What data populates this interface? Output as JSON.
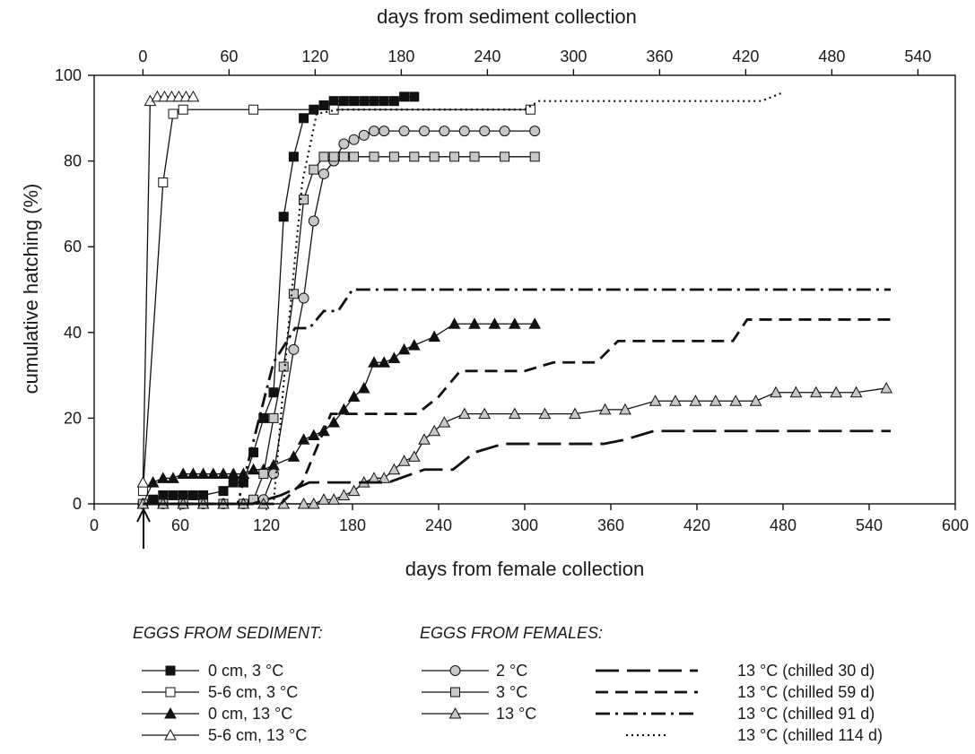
{
  "chart_data": {
    "type": "line",
    "title": "",
    "xlabel": "days from female collection",
    "ylabel": "cumulative hatching (%)",
    "x2label": "days from sediment collection",
    "xlim": [
      0,
      600
    ],
    "ylim": [
      0,
      100
    ],
    "x2lim": [
      0,
      570
    ],
    "x2_offset_days": 34,
    "xticks": [
      0,
      60,
      120,
      180,
      240,
      300,
      360,
      420,
      480,
      540,
      600
    ],
    "yticks": [
      0,
      20,
      40,
      60,
      80,
      100
    ],
    "x2ticks": [
      0,
      60,
      120,
      180,
      240,
      300,
      360,
      420,
      480,
      540
    ],
    "grid": false,
    "legend_group_sediment_title": "EGGS FROM SEDIMENT:",
    "legend_group_females_title": "EGGS FROM FEMALES:",
    "series": [
      {
        "name": "0 cm,  3 °C",
        "group": "sediment",
        "axis": "top",
        "style": "solid",
        "marker": "square",
        "fill": "#111111",
        "x": [
          0,
          7,
          14,
          21,
          28,
          35,
          42,
          56,
          63,
          70,
          77,
          84,
          91,
          98,
          105,
          112,
          119,
          126,
          133,
          140,
          147,
          154,
          161,
          168,
          175,
          182,
          189
        ],
        "y": [
          0,
          1,
          2,
          2,
          2,
          2,
          2,
          3,
          5,
          5,
          12,
          20,
          26,
          67,
          81,
          90,
          92,
          93,
          94,
          94,
          94,
          94,
          94,
          94,
          94,
          95,
          95
        ]
      },
      {
        "name": "5-6 cm, 3 °C",
        "group": "sediment",
        "axis": "top",
        "style": "solid",
        "marker": "square",
        "fill": "#ffffff",
        "x": [
          0,
          14,
          21,
          28,
          77,
          133,
          270
        ],
        "y": [
          3,
          75,
          91,
          92,
          92,
          92,
          92
        ]
      },
      {
        "name": "0 cm, 13 °C",
        "group": "sediment",
        "axis": "top",
        "style": "solid",
        "marker": "triangle",
        "fill": "#111111",
        "x": [
          0,
          7,
          14,
          21,
          28,
          35,
          42,
          49,
          56,
          63,
          70,
          77,
          84,
          91,
          105,
          112,
          119,
          126,
          133,
          140,
          147,
          154,
          161,
          168,
          175,
          182,
          189,
          203,
          217,
          231,
          245,
          259,
          273
        ],
        "y": [
          0,
          5,
          6,
          6,
          7,
          7,
          7,
          7,
          7,
          7,
          7,
          8,
          8,
          9,
          11,
          15,
          16,
          17,
          19,
          22,
          25,
          27,
          33,
          33,
          34,
          36,
          37,
          39,
          42,
          42,
          42,
          42,
          42
        ]
      },
      {
        "name": "5-6 cm, 13 °C",
        "group": "sediment",
        "axis": "top",
        "style": "solid",
        "marker": "triangle",
        "fill": "#ffffff",
        "x": [
          0,
          5,
          10,
          15,
          20,
          25,
          30,
          35
        ],
        "y": [
          5,
          94,
          95,
          95,
          95,
          95,
          95,
          95
        ]
      },
      {
        "name": "2 °C",
        "group": "females",
        "axis": "bottom",
        "style": "solid",
        "marker": "circle",
        "fill": "#c8c8c8",
        "x": [
          34,
          48,
          62,
          76,
          90,
          104,
          118,
          125,
          139,
          146,
          153,
          160,
          167,
          174,
          181,
          188,
          195,
          202,
          216,
          230,
          244,
          258,
          272,
          286,
          307
        ],
        "y": [
          0,
          0,
          0,
          0,
          0,
          0,
          1,
          7,
          36,
          48,
          66,
          77,
          80,
          84,
          85,
          86,
          87,
          87,
          87,
          87,
          87,
          87,
          87,
          87,
          87
        ]
      },
      {
        "name": "3 °C",
        "group": "females",
        "axis": "bottom",
        "style": "solid",
        "marker": "square",
        "fill": "#c8c8c8",
        "x": [
          34,
          48,
          62,
          76,
          90,
          104,
          111,
          118,
          125,
          132,
          139,
          146,
          153,
          160,
          167,
          174,
          181,
          195,
          209,
          223,
          237,
          251,
          265,
          286,
          307
        ],
        "y": [
          0,
          0,
          0,
          0,
          0,
          0,
          1,
          7,
          20,
          32,
          49,
          71,
          78,
          81,
          81,
          81,
          81,
          81,
          81,
          81,
          81,
          81,
          81,
          81,
          81
        ]
      },
      {
        "name": "13 °C",
        "group": "females",
        "axis": "bottom",
        "style": "solid",
        "marker": "triangle",
        "fill": "#c8c8c8",
        "x": [
          34,
          48,
          62,
          76,
          90,
          104,
          118,
          132,
          146,
          153,
          160,
          167,
          174,
          181,
          188,
          195,
          202,
          209,
          216,
          223,
          230,
          237,
          244,
          258,
          272,
          293,
          314,
          335,
          356,
          370,
          391,
          405,
          419,
          433,
          447,
          461,
          475,
          489,
          503,
          517,
          531,
          552
        ],
        "y": [
          0,
          0,
          0,
          0,
          0,
          0,
          0,
          0,
          0,
          0,
          1,
          1,
          2,
          3,
          5,
          6,
          6,
          8,
          10,
          11,
          15,
          17,
          19,
          21,
          21,
          21,
          21,
          21,
          22,
          22,
          24,
          24,
          24,
          24,
          24,
          24,
          26,
          26,
          26,
          26,
          26,
          27
        ]
      },
      {
        "name": "13 °C (chilled 30 d)",
        "group": "females",
        "axis": "bottom",
        "style": "longdash",
        "marker": "none",
        "x": [
          34,
          110,
          130,
          150,
          205,
          230,
          250,
          265,
          285,
          355,
          370,
          390,
          555
        ],
        "y": [
          0,
          0,
          2,
          5,
          5,
          8,
          8,
          12,
          14,
          14,
          15,
          17,
          17
        ]
      },
      {
        "name": "13 °C (chilled 59 d)",
        "group": "females",
        "axis": "bottom",
        "style": "dash",
        "marker": "none",
        "x": [
          34,
          130,
          145,
          165,
          175,
          225,
          240,
          255,
          300,
          320,
          350,
          365,
          445,
          455,
          555
        ],
        "y": [
          0,
          0,
          5,
          21,
          21,
          21,
          25,
          31,
          31,
          33,
          33,
          38,
          38,
          43,
          43
        ]
      },
      {
        "name": "13 °C (chilled 91 d)",
        "group": "females",
        "axis": "bottom",
        "style": "dashdot",
        "marker": "none",
        "x": [
          34,
          100,
          115,
          125,
          140,
          150,
          160,
          170,
          180,
          555
        ],
        "y": [
          0,
          0,
          20,
          33,
          41,
          41,
          45,
          45,
          50,
          50
        ]
      },
      {
        "name": "13 °C (chilled 114 d)",
        "group": "females",
        "axis": "bottom",
        "style": "dot",
        "marker": "none",
        "x": [
          34,
          125,
          135,
          145,
          155,
          170,
          300,
          310,
          465,
          480
        ],
        "y": [
          0,
          0,
          40,
          75,
          91,
          92,
          92,
          94,
          94,
          96
        ]
      }
    ]
  }
}
